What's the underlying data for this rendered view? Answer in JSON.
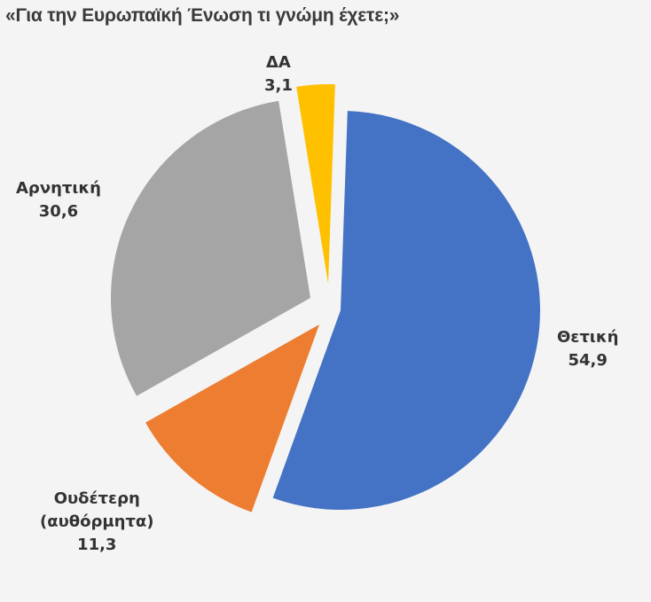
{
  "chart_data": {
    "type": "pie",
    "title": "«Για την Ευρωπαϊκή Ένωση τι γνώμη έχετε;»",
    "categories": [
      "Θετική",
      "Ουδέτερη (αυθόρμητα)",
      "Αρνητική",
      "ΔΑ"
    ],
    "values": [
      54.9,
      11.3,
      30.6,
      3.1
    ],
    "value_labels": [
      "54,9",
      "11,3",
      "30,6",
      "3,1"
    ],
    "colors": [
      "#4472C4",
      "#ED7D31",
      "#A5A5A5",
      "#FFC000"
    ],
    "exploded": true,
    "legend": "none"
  },
  "labels": {
    "positive_name": "Θετική",
    "positive_value": "54,9",
    "neutral_name": "Ουδέτερη",
    "neutral_sub": "(αυθόρμητα)",
    "neutral_value": "11,3",
    "negative_name": "Αρνητική",
    "negative_value": "30,6",
    "dk_name": "ΔΑ",
    "dk_value": "3,1"
  }
}
